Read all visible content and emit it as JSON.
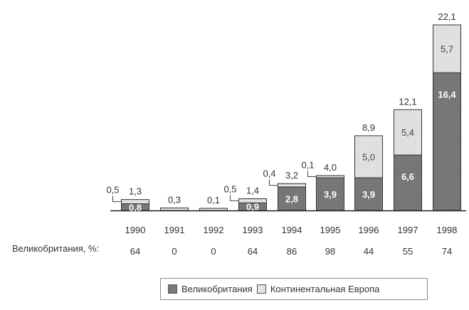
{
  "chart_data": {
    "type": "bar",
    "stacked": true,
    "categories": [
      "1990",
      "1991",
      "1992",
      "1993",
      "1994",
      "1995",
      "1996",
      "1997",
      "1998"
    ],
    "series": [
      {
        "name": "Великобритания",
        "values": [
          0.8,
          0.0,
          0.0,
          0.9,
          2.8,
          3.9,
          3.9,
          6.6,
          16.4
        ],
        "labels": [
          "0,8",
          "",
          "",
          "0,9",
          "2,8",
          "3,9",
          "3,9",
          "6,6",
          "16,4"
        ],
        "color": "#7a7a7a"
      },
      {
        "name": "Континентальная Европа",
        "values": [
          0.5,
          0.3,
          0.1,
          0.5,
          0.4,
          0.1,
          5.0,
          5.4,
          5.7
        ],
        "labels": [
          "",
          "",
          "",
          "",
          "",
          "",
          "5,0",
          "5,4",
          "5,7"
        ],
        "color": "#e4e4e4"
      }
    ],
    "totals": [
      1.3,
      0.3,
      0.1,
      1.4,
      3.2,
      4.0,
      8.9,
      12.1,
      22.1
    ],
    "total_labels": [
      "1,3",
      "0,3",
      "0,1",
      "1,4",
      "3,2",
      "4,0",
      "8,9",
      "12,1",
      "22,1"
    ],
    "leader_labels": [
      "0,5",
      "",
      "",
      "0,5",
      "0,4",
      "0,1",
      "",
      "",
      ""
    ],
    "share_row": {
      "label": "Великобритания, %:",
      "values": [
        "64",
        "0",
        "0",
        "64",
        "86",
        "98",
        "44",
        "55",
        "74"
      ]
    },
    "ylim": [
      0,
      22.1
    ],
    "legend_position": "bottom-right",
    "grid": false
  }
}
